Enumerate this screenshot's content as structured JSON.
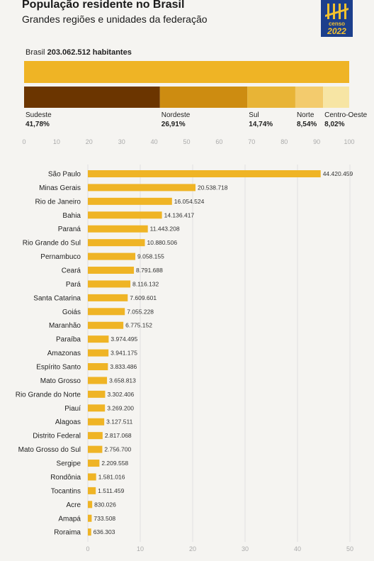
{
  "header": {
    "title": "População residente no Brasil",
    "subtitle": "Grandes regiões e unidades da federação",
    "logo_word": "censo",
    "logo_year": "2022"
  },
  "total": {
    "label": "Brasil",
    "value_text": "203.062.512 habitantes"
  },
  "colors": {
    "bar": "#efb425",
    "total_bar": "#efb425",
    "regions": [
      "#6b3500",
      "#cd8c11",
      "#e8b436",
      "#f3cb6d",
      "#f7e5a4"
    ],
    "axis_text": "#aaaaaa",
    "grid": "#e1e1e1",
    "logo_bg": "#1c3f8c",
    "logo_fg": "#f2c12e"
  },
  "chart_data": [
    {
      "type": "bar",
      "orientation": "horizontal-stacked",
      "unit": "%",
      "categories": [
        "Sudeste",
        "Nordeste",
        "Sul",
        "Norte",
        "Centro-Oeste"
      ],
      "values": [
        41.78,
        26.91,
        14.74,
        8.54,
        8.02
      ],
      "value_labels": [
        "41,78%",
        "26,91%",
        "14,74%",
        "8,54%",
        "8,02%"
      ],
      "ticks": [
        "0",
        "10",
        "20",
        "30",
        "40",
        "50",
        "60",
        "70",
        "80",
        "90",
        "100"
      ],
      "xlim": [
        0,
        100
      ]
    },
    {
      "type": "bar",
      "orientation": "horizontal",
      "unit": "milhões",
      "categories": [
        "São Paulo",
        "Minas Gerais",
        "Rio de Janeiro",
        "Bahia",
        "Paraná",
        "Rio Grande do Sul",
        "Pernambuco",
        "Ceará",
        "Pará",
        "Santa Catarina",
        "Goiás",
        "Maranhão",
        "Paraíba",
        "Amazonas",
        "Espírito Santo",
        "Mato Grosso",
        "Rio Grande do Norte",
        "Piauí",
        "Alagoas",
        "Distrito Federal",
        "Mato Grosso do Sul",
        "Sergipe",
        "Rondônia",
        "Tocantins",
        "Acre",
        "Amapá",
        "Roraima"
      ],
      "values": [
        44420459,
        20538718,
        16054524,
        14136417,
        11443208,
        10880506,
        9058155,
        8791688,
        8116132,
        7609601,
        7055228,
        6775152,
        3974495,
        3941175,
        3833486,
        3658813,
        3302406,
        3269200,
        3127511,
        2817068,
        2756700,
        2209558,
        1581016,
        1511459,
        830026,
        733508,
        636303
      ],
      "value_labels": [
        "44.420.459",
        "20.538.718",
        "16.054.524",
        "14.136.417",
        "11.443.208",
        "10.880.506",
        "9.058.155",
        "8.791.688",
        "8.116.132",
        "7.609.601",
        "7.055.228",
        "6.775.152",
        "3.974.495",
        "3.941.175",
        "3.833.486",
        "3.658.813",
        "3.302.406",
        "3.269.200",
        "3.127.511",
        "2.817.068",
        "2.756.700",
        "2.209.558",
        "1.581.016",
        "1.511.459",
        "830.026",
        "733.508",
        "636.303"
      ],
      "ticks": [
        "0",
        "10",
        "20",
        "30",
        "40",
        "50"
      ],
      "xlim": [
        0,
        50
      ],
      "grid": true
    }
  ]
}
